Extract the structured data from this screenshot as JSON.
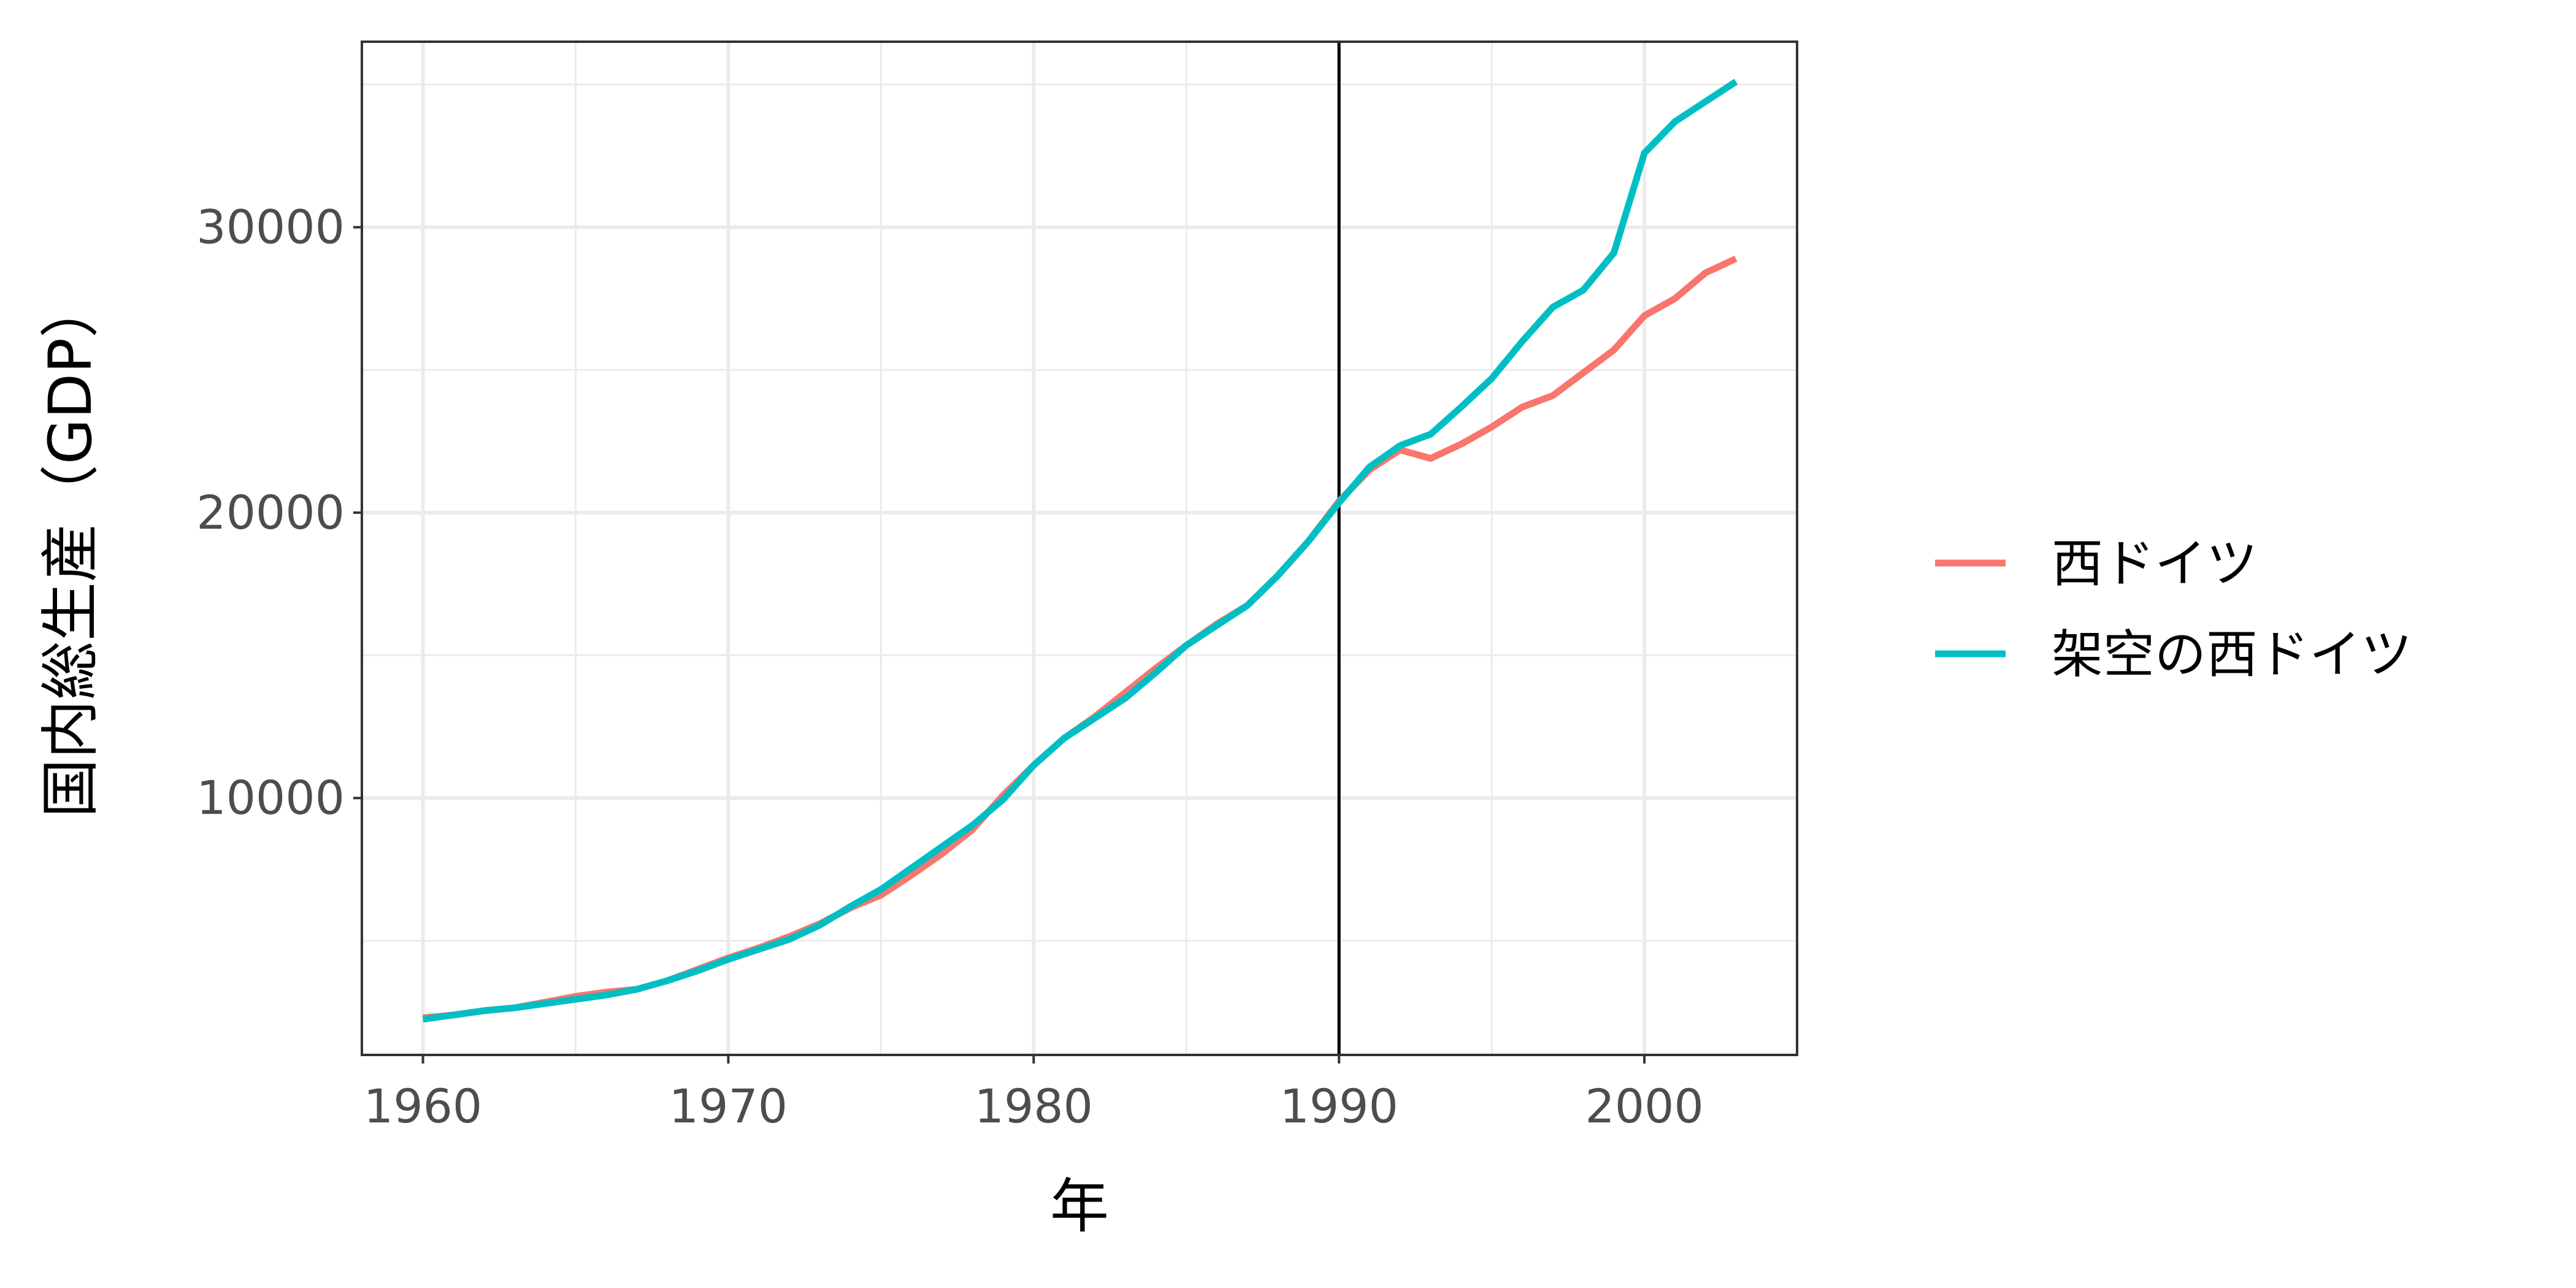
{
  "chart_data": {
    "type": "line",
    "title": "",
    "xlabel": "年",
    "ylabel": "国内総生産（GDP）",
    "xlim": [
      1958,
      2005
    ],
    "ylim": [
      1000,
      36500
    ],
    "x_ticks": [
      1960,
      1970,
      1980,
      1990,
      2000
    ],
    "x_tick_labels": [
      "1960",
      "1970",
      "1980",
      "1990",
      "2000"
    ],
    "y_ticks": [
      10000,
      20000,
      30000
    ],
    "y_tick_labels": [
      "10000",
      "20000",
      "30000"
    ],
    "y_minor_ticks": [
      5000,
      15000,
      25000,
      35000
    ],
    "x_minor_ticks": [
      1965,
      1975,
      1985,
      1995
    ],
    "grid": true,
    "vertical_line": 1990,
    "legend_position": "right",
    "x": [
      1960,
      1961,
      1962,
      1963,
      1964,
      1965,
      1966,
      1967,
      1968,
      1969,
      1970,
      1971,
      1972,
      1973,
      1974,
      1975,
      1976,
      1977,
      1978,
      1979,
      1980,
      1981,
      1982,
      1983,
      1984,
      1985,
      1986,
      1987,
      1988,
      1989,
      1990,
      1991,
      1992,
      1993,
      1994,
      1995,
      1996,
      1997,
      1998,
      1999,
      2000,
      2001,
      2002,
      2003
    ],
    "series": [
      {
        "name": "西ドイツ",
        "color": "#F8766D",
        "values": [
          2300,
          2400,
          2550,
          2650,
          2850,
          3050,
          3200,
          3300,
          3600,
          4000,
          4400,
          4750,
          5150,
          5600,
          6150,
          6600,
          7300,
          8050,
          8900,
          10100,
          11150,
          12100,
          12850,
          13700,
          14550,
          15350,
          16100,
          16750,
          17800,
          19000,
          20400,
          21500,
          22200,
          21900,
          22400,
          23000,
          23700,
          24100,
          24900,
          25700,
          26900,
          27500,
          28400,
          28900
        ],
        "name_visible": true
      },
      {
        "name": "架空の西ドイツ",
        "color": "#00BFC4",
        "values": [
          2250,
          2400,
          2550,
          2650,
          2800,
          2950,
          3100,
          3300,
          3600,
          3950,
          4350,
          4700,
          5050,
          5550,
          6200,
          6800,
          7550,
          8300,
          9050,
          9950,
          11150,
          12100,
          12800,
          13500,
          14400,
          15350,
          16050,
          16750,
          17800,
          19000,
          20350,
          21600,
          22350,
          22750,
          23700,
          24700,
          26000,
          27200,
          27800,
          29100,
          32600,
          33700,
          34400,
          35100
        ]
      }
    ]
  }
}
